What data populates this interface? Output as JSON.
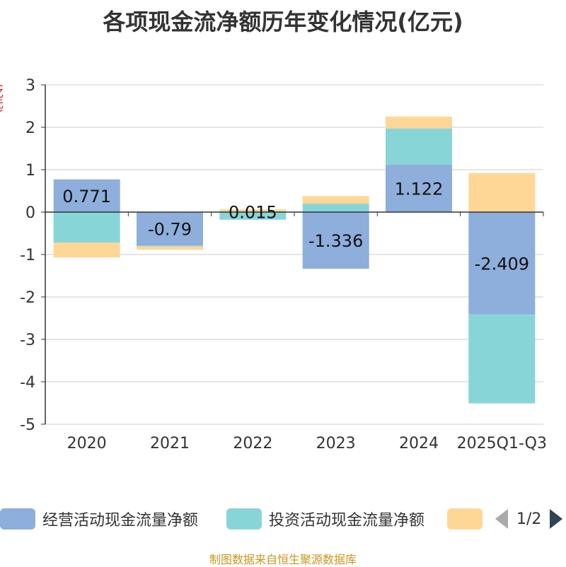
{
  "chart_data": {
    "type": "bar",
    "stacked": true,
    "title": "各项现金流净额历年变化情况(亿元)",
    "ylabel": "(亿元)",
    "xlabel": "",
    "ylim": [
      -5,
      3
    ],
    "yticks": [
      3,
      2,
      1,
      0,
      -1,
      -2,
      -3,
      -4,
      -5
    ],
    "categories": [
      "2020",
      "2021",
      "2022",
      "2023",
      "2024",
      "2025Q1-Q3"
    ],
    "series": [
      {
        "name": "经营活动现金流量净额",
        "color": "#8eaedc",
        "values": [
          0.771,
          -0.79,
          0.015,
          -1.336,
          1.122,
          -2.409
        ]
      },
      {
        "name": "投资活动现金流量净额",
        "color": "#88d5d8",
        "values": [
          -0.72,
          -0.02,
          -0.18,
          0.2,
          0.85,
          -2.1
        ]
      },
      {
        "name": "",
        "color": "#fed797",
        "values": [
          -0.35,
          -0.08,
          0.05,
          0.18,
          0.28,
          0.92
        ]
      }
    ],
    "data_labels": [
      "0.771",
      "-0.79",
      "0.015",
      "-1.336",
      "1.122",
      "-2.409"
    ]
  },
  "legend": {
    "items": [
      "经营活动现金流量净额",
      "投资活动现金流量净额",
      ""
    ],
    "page": "1/2"
  },
  "source": "制图数据来自恒生聚源数据库"
}
